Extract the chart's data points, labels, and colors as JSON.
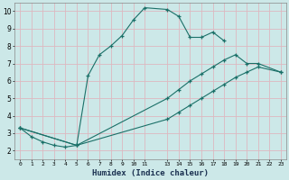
{
  "xlabel": "Humidex (Indice chaleur)",
  "background_color": "#cce8e8",
  "grid_color": "#ddb8c0",
  "line_color": "#1a7068",
  "curve1_x": [
    0,
    1,
    2,
    3,
    4,
    5,
    6,
    7,
    8,
    9,
    10,
    11,
    13,
    14,
    15,
    16,
    17,
    18
  ],
  "curve1_y": [
    3.3,
    2.8,
    2.5,
    2.3,
    2.2,
    2.3,
    6.3,
    7.5,
    8.0,
    8.6,
    9.5,
    10.2,
    10.1,
    9.7,
    8.5,
    8.5,
    8.8,
    8.3
  ],
  "curve2_x": [
    0,
    5,
    13,
    14,
    15,
    16,
    17,
    18,
    19,
    20,
    21,
    23
  ],
  "curve2_y": [
    3.3,
    2.3,
    5.0,
    5.5,
    6.0,
    6.4,
    6.8,
    7.2,
    7.5,
    7.0,
    7.0,
    6.5
  ],
  "curve3_x": [
    0,
    5,
    13,
    14,
    15,
    16,
    17,
    18,
    19,
    20,
    21,
    23
  ],
  "curve3_y": [
    3.3,
    2.3,
    3.8,
    4.2,
    4.6,
    5.0,
    5.4,
    5.8,
    6.2,
    6.5,
    6.8,
    6.5
  ],
  "xlim": [
    -0.5,
    23.5
  ],
  "ylim": [
    1.5,
    10.5
  ],
  "yticks": [
    2,
    3,
    4,
    5,
    6,
    7,
    8,
    9,
    10
  ]
}
